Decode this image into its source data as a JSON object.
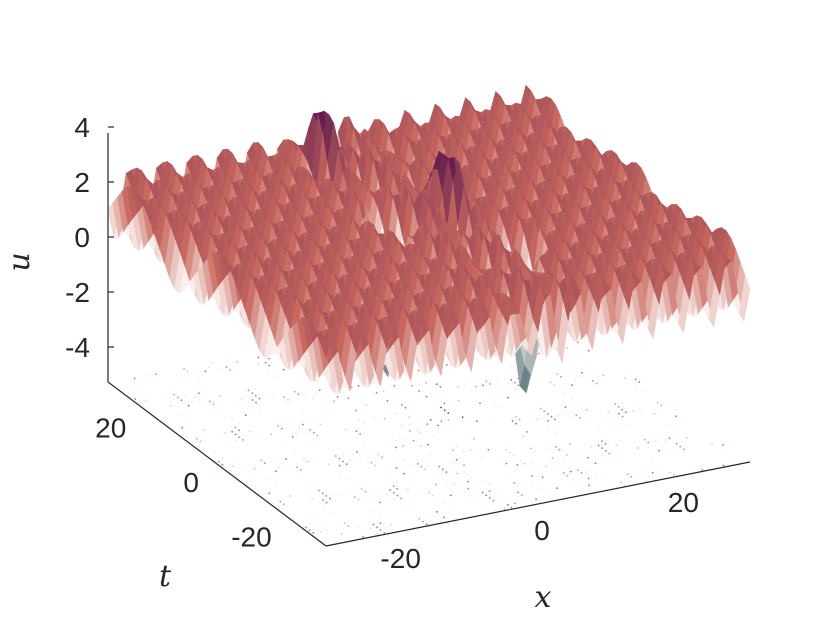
{
  "chart_data": {
    "type": "surface",
    "title": "",
    "xlabel": "x",
    "ylabel": "t",
    "zlabel": "u",
    "x_ticks": [
      "-20",
      "0",
      "20"
    ],
    "y_ticks": [
      "-20",
      "0",
      "20"
    ],
    "z_ticks": [
      "4",
      "2",
      "0",
      "-2",
      "-4"
    ],
    "xlim": [
      -30,
      30
    ],
    "ylim": [
      -30,
      30
    ],
    "zlim": [
      -5,
      4
    ],
    "grid": false,
    "legend": "none",
    "contour_projection": true,
    "colormap": {
      "high": "#5c1a4e",
      "mid_high": "#c9695f",
      "mid": "#fbf2ef",
      "low": "#0b3a45"
    },
    "surface": {
      "background_level": 1.0,
      "wave_count": 8,
      "wave_amplitude": 1.5,
      "peaks": [
        {
          "x": -3,
          "t": 22,
          "u": 3.2
        },
        {
          "x": 3,
          "t": 2,
          "u": 3.6
        }
      ],
      "troughs": [
        {
          "x": -5,
          "t": 2,
          "u": -4.8
        },
        {
          "x": 7,
          "t": -12,
          "u": -4.3
        }
      ]
    }
  }
}
